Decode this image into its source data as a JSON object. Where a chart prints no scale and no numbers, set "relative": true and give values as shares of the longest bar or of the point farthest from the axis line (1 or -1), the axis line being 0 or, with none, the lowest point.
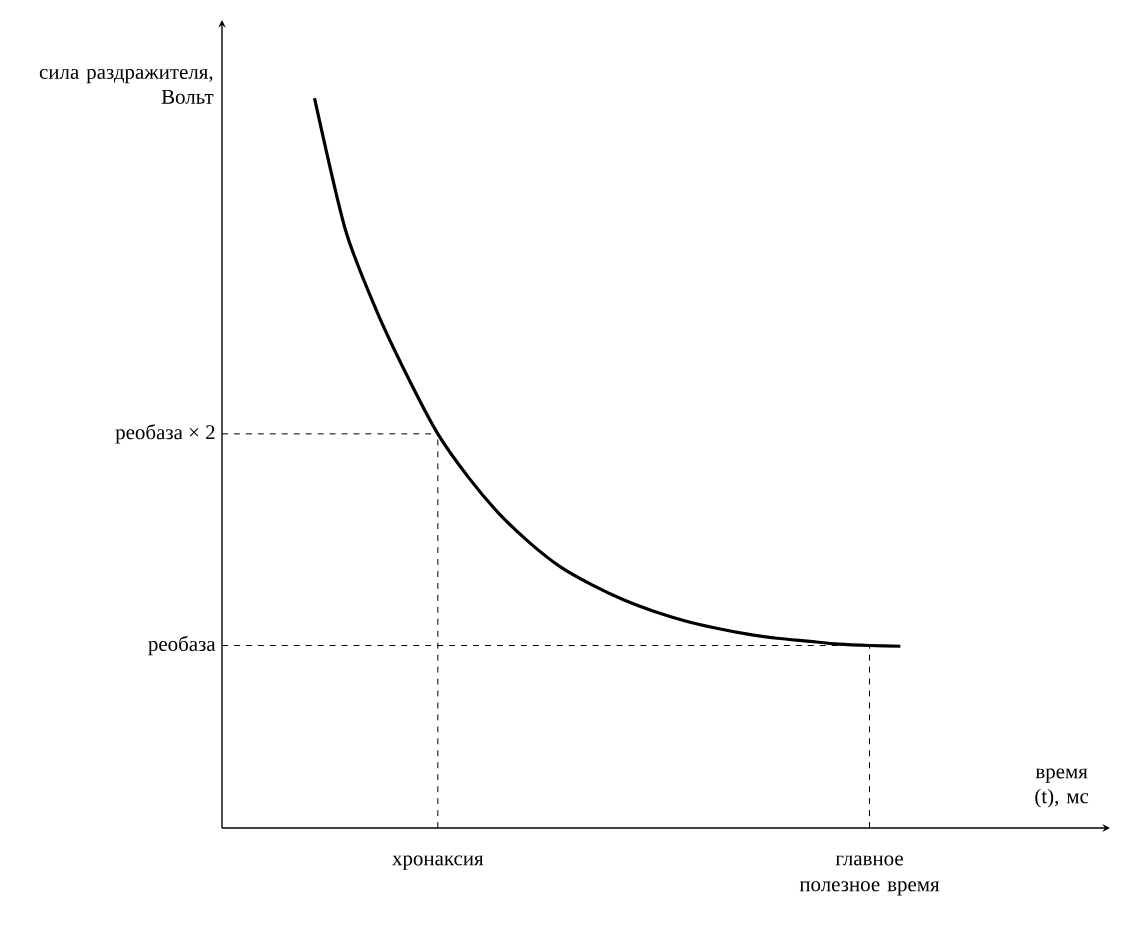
{
  "chart_data": {
    "type": "line",
    "relative": true,
    "xlabel": "время (t), мс",
    "ylabel": "сила раздражителя, Вольт",
    "categories": [
      null,
      null,
      null,
      null,
      "хронаксия",
      null,
      null,
      null,
      null,
      null,
      null,
      null,
      null,
      null,
      null,
      null,
      null,
      null,
      "главное полезное время",
      null
    ],
    "values": [
      1,
      0.82,
      0.71,
      0.62,
      0.54,
      0.48,
      0.43,
      0.39,
      0.357,
      0.333,
      0.313,
      0.297,
      0.284,
      0.274,
      0.266,
      0.26,
      0.256,
      0.252,
      0.25,
      0.249
    ],
    "color": "#000000",
    "marker": "none",
    "line_style": "solid",
    "ref_lines": [
      {
        "axis": "y",
        "value": 0.25,
        "label": "реобаза",
        "line_style": "dashed"
      },
      {
        "axis": "y",
        "value": 0.54,
        "label": "реобаза × 2",
        "line_style": "dashed"
      },
      {
        "axis": "x",
        "value": "хронаксия",
        "line_style": "dashed"
      },
      {
        "axis": "x",
        "value": "главное полезное время",
        "line_style": "dashed"
      }
    ]
  }
}
